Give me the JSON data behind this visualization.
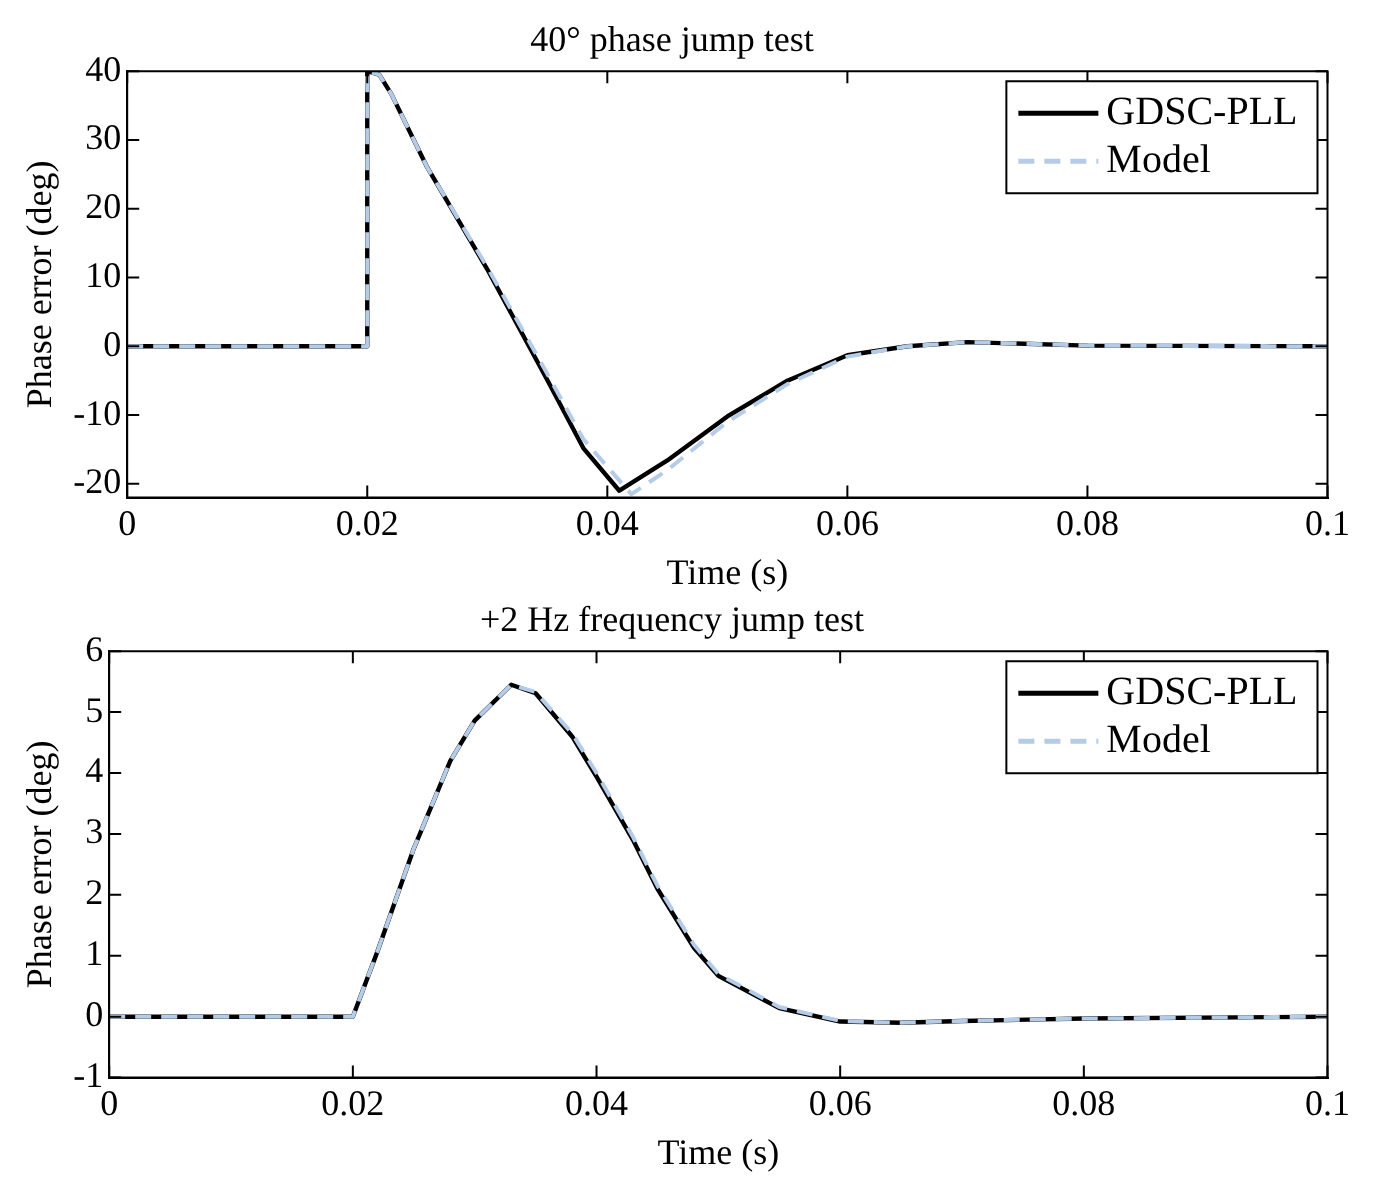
{
  "chart_data": [
    {
      "type": "line",
      "title": "40° phase jump test",
      "xlabel": "Time (s)",
      "ylabel": "Phase error (deg)",
      "xlim": [
        0,
        0.1
      ],
      "xticks": [
        0,
        0.02,
        0.04,
        0.06,
        0.08,
        0.1
      ],
      "ylim": [
        -22,
        40
      ],
      "yticks": [
        -20,
        -10,
        0,
        10,
        20,
        30,
        40
      ],
      "grid": false,
      "legend": "top right",
      "marker": "none",
      "series": [
        {
          "name": "GDSC-PLL",
          "color": "#000000",
          "line_style": "solid",
          "x": [
            0,
            0.02,
            0.02,
            0.021,
            0.022,
            0.025,
            0.03,
            0.035,
            0.038,
            0.041,
            0.045,
            0.05,
            0.055,
            0.06,
            0.065,
            0.07,
            0.08,
            0.1
          ],
          "values": [
            0,
            0,
            40,
            39.5,
            36.7,
            26,
            11.2,
            -4.9,
            -14.8,
            -21,
            -16.6,
            -10.2,
            -5,
            -1.3,
            0,
            0.6,
            0.1,
            0
          ]
        },
        {
          "name": "Model",
          "color": "#b4cce8",
          "line_style": "dashed",
          "x": [
            0,
            0.02,
            0.02,
            0.021,
            0.022,
            0.025,
            0.03,
            0.035,
            0.038,
            0.042,
            0.045,
            0.05,
            0.055,
            0.06,
            0.065,
            0.07,
            0.08,
            0.1
          ],
          "values": [
            0,
            0,
            40,
            39.5,
            36.7,
            26,
            11.5,
            -4,
            -13.5,
            -21.5,
            -18,
            -11,
            -5.5,
            -1.5,
            0,
            0.6,
            0.1,
            0
          ]
        }
      ]
    },
    {
      "type": "line",
      "title": "+2 Hz frequency jump test",
      "xlabel": "Time (s)",
      "ylabel": "Phase error (deg)",
      "xlim": [
        0,
        0.1
      ],
      "xticks": [
        0,
        0.02,
        0.04,
        0.06,
        0.08,
        0.1
      ],
      "ylim": [
        -1,
        6
      ],
      "yticks": [
        -1,
        0,
        1,
        2,
        3,
        4,
        5,
        6
      ],
      "grid": false,
      "legend": "top right",
      "marker": "none",
      "series": [
        {
          "name": "GDSC-PLL",
          "color": "#000000",
          "line_style": "solid",
          "x": [
            0,
            0.02,
            0.022,
            0.025,
            0.028,
            0.03,
            0.033,
            0.035,
            0.038,
            0.04,
            0.043,
            0.045,
            0.048,
            0.05,
            0.055,
            0.06,
            0.065,
            0.07,
            0.08,
            0.1
          ],
          "values": [
            0,
            0,
            1.06,
            2.76,
            4.2,
            4.86,
            5.45,
            5.31,
            4.6,
            3.94,
            2.9,
            2.1,
            1.13,
            0.67,
            0.14,
            -0.08,
            -0.1,
            -0.07,
            -0.03,
            0
          ]
        },
        {
          "name": "Model",
          "color": "#b4cce8",
          "line_style": "dashed",
          "x": [
            0,
            0.02,
            0.022,
            0.025,
            0.028,
            0.03,
            0.033,
            0.035,
            0.038,
            0.04,
            0.043,
            0.045,
            0.048,
            0.05,
            0.055,
            0.06,
            0.065,
            0.07,
            0.08,
            0.1
          ],
          "values": [
            0,
            0,
            1.06,
            2.76,
            4.2,
            4.86,
            5.45,
            5.33,
            4.65,
            4,
            2.95,
            2.15,
            1.18,
            0.7,
            0.16,
            -0.07,
            -0.1,
            -0.07,
            -0.03,
            0
          ]
        }
      ]
    }
  ]
}
